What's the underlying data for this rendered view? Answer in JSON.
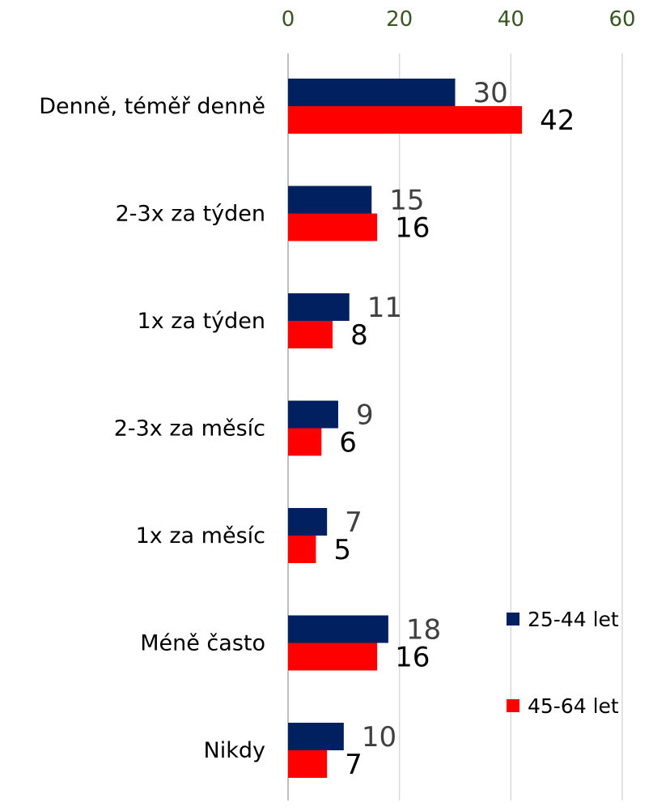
{
  "chart_data": {
    "type": "bar",
    "orientation": "horizontal",
    "categories": [
      "Denně, téměř denně",
      "2-3x za týden",
      "1x za týden",
      "2-3x za měsíc",
      "1x za měsíc",
      "Méně často",
      "Nikdy"
    ],
    "series": [
      {
        "name": "25-44 let",
        "values": [
          30,
          15,
          11,
          9,
          7,
          18,
          10
        ],
        "color": "#002060",
        "label_color": "#404040"
      },
      {
        "name": "45-64 let",
        "values": [
          42,
          16,
          8,
          6,
          5,
          16,
          7
        ],
        "color": "#ff0000",
        "label_color": "#000000"
      }
    ],
    "xlim": [
      0,
      60
    ],
    "xticks": [
      0,
      20,
      40,
      60
    ],
    "x_axis_position": "top",
    "grid": true,
    "legend_position": "right",
    "data_labels": true
  }
}
